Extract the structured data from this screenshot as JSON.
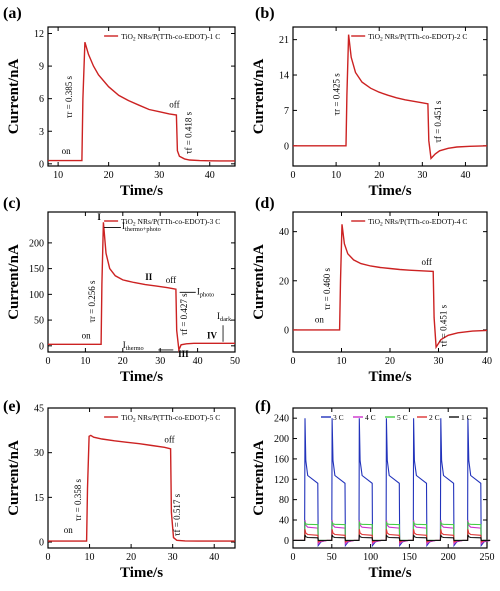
{
  "chart_data": [
    {
      "panel": "(a)",
      "type": "line",
      "legend": "TiO₂ NRs/P(TTh-co-EDOT)-1 C",
      "xlabel": "Time/s",
      "ylabel": "Current/nA",
      "xlim": [
        8,
        45
      ],
      "ylim": [
        -0.2,
        12.6
      ],
      "xticks": [
        "10",
        "20",
        "30",
        "40"
      ],
      "yticks": [
        "0",
        "3",
        "6",
        "9",
        "12"
      ],
      "color": "#cc2222",
      "x": [
        8,
        14.7,
        14.9,
        15.3,
        16,
        17,
        18,
        20,
        22,
        24,
        26,
        28,
        30,
        32,
        33.4,
        33.6,
        34,
        35,
        36,
        38,
        40,
        42,
        45
      ],
      "y": [
        0.3,
        0.3,
        6.0,
        11.2,
        10.1,
        9.0,
        8.2,
        7.1,
        6.3,
        5.8,
        5.4,
        5.0,
        4.8,
        4.6,
        4.5,
        1.2,
        0.7,
        0.45,
        0.35,
        0.3,
        0.28,
        0.27,
        0.27
      ],
      "annotations": {
        "on": "on",
        "off": "off",
        "t_rise": "τr = 0.385 s",
        "t_fall": "τf = 0.418 s"
      }
    },
    {
      "panel": "(b)",
      "type": "line",
      "legend": "TiO₂ NRs/P(TTh-co-EDOT)-2 C",
      "xlabel": "Time/s",
      "ylabel": "Current/nA",
      "xlim": [
        0,
        45
      ],
      "ylim": [
        -4,
        23.5
      ],
      "xticks": [
        "0",
        "10",
        "20",
        "30",
        "40"
      ],
      "yticks": [
        "0",
        "7",
        "14",
        "21"
      ],
      "color": "#cc2222",
      "x": [
        0,
        12.3,
        12.5,
        12.9,
        13.5,
        14.5,
        16,
        18,
        20,
        22,
        24,
        26,
        28,
        30,
        31.3,
        31.5,
        32,
        33,
        34,
        36,
        38,
        41,
        45
      ],
      "y": [
        0,
        0,
        10,
        22,
        17.5,
        14.5,
        12.6,
        11.4,
        10.6,
        10.0,
        9.5,
        9.1,
        8.8,
        8.5,
        8.3,
        1.0,
        -2.5,
        -1.6,
        -1.0,
        -0.5,
        -0.25,
        -0.1,
        0
      ],
      "annotations": {
        "t_rise": "τr = 0.425 s",
        "t_fall": "τf = 0.451 s"
      }
    },
    {
      "panel": "(c)",
      "type": "line",
      "legend": "TiO₂ NRs/P(TTh-co-EDOT)-3 C",
      "xlabel": "Time/s",
      "ylabel": "Current/nA",
      "xlim": [
        0,
        50
      ],
      "ylim": [
        -12,
        260
      ],
      "xticks": [
        "0",
        "10",
        "20",
        "30",
        "40",
        "50"
      ],
      "yticks": [
        "0",
        "50",
        "100",
        "150",
        "200"
      ],
      "color": "#cc2222",
      "x": [
        0,
        14.2,
        14.4,
        14.8,
        15.5,
        16.5,
        18,
        20,
        23,
        26,
        29,
        32,
        34.2,
        34.4,
        35,
        35.6,
        37,
        39,
        42,
        46,
        50
      ],
      "y": [
        3,
        3,
        120,
        240,
        180,
        150,
        136,
        128,
        123,
        119,
        116,
        113,
        110,
        30,
        -8,
        2,
        4,
        5,
        5,
        5,
        5
      ],
      "annotations": {
        "on": "on",
        "off": "off",
        "t_rise": "τr = 0.256 s",
        "t_fall": "τf = 0.427 s",
        "I": "I",
        "II": "II",
        "III": "III",
        "IV": "IV",
        "I_thermo_photo": "Ithermo+photo",
        "I_photo": "Iphoto",
        "I_thermo": "Ithermo",
        "I_dark": "Idark"
      }
    },
    {
      "panel": "(d)",
      "type": "line",
      "legend": "TiO₂ NRs/P(TTh-co-EDOT)-4 C",
      "xlabel": "Time/s",
      "ylabel": "Current/nA",
      "xlim": [
        0,
        40
      ],
      "ylim": [
        -9,
        48
      ],
      "xticks": [
        "0",
        "10",
        "20",
        "30",
        "40"
      ],
      "yticks": [
        "0",
        "20",
        "40"
      ],
      "color": "#cc2222",
      "x": [
        0,
        9.6,
        9.8,
        10.1,
        10.6,
        11.3,
        12.5,
        14,
        16,
        18,
        20,
        22,
        24,
        26,
        28,
        28.9,
        29.1,
        29.5,
        30.5,
        32,
        34,
        37,
        40
      ],
      "y": [
        0,
        0,
        20,
        43,
        35,
        31,
        28.5,
        27,
        26,
        25.4,
        25,
        24.6,
        24.3,
        24.1,
        23.9,
        23.8,
        5,
        -7,
        -4,
        -2.2,
        -1.2,
        -0.5,
        -0.2
      ],
      "annotations": {
        "on": "on",
        "off": "off",
        "t_rise": "τr = 0.460 s",
        "t_fall": "τf = 0.451 s"
      }
    },
    {
      "panel": "(e)",
      "type": "line",
      "legend": "TiO₂ NRs/P(TTh-co-EDOT)-5 C",
      "xlabel": "Time/s",
      "ylabel": "Current/nA",
      "xlim": [
        0,
        45
      ],
      "ylim": [
        -2,
        45
      ],
      "xticks": [
        "0",
        "10",
        "20",
        "30",
        "40"
      ],
      "yticks": [
        "0",
        "15",
        "30",
        "45"
      ],
      "color": "#cc2222",
      "x": [
        0,
        9.3,
        9.5,
        9.9,
        10.3,
        11,
        13,
        16,
        19,
        22,
        25,
        28,
        29.5,
        29.7,
        30.2,
        31,
        33,
        36,
        40,
        45
      ],
      "y": [
        0.3,
        0.3,
        18,
        35.5,
        35.8,
        35.2,
        34.6,
        34,
        33.5,
        33,
        32.4,
        31.8,
        31.3,
        10,
        1.5,
        0.6,
        0.4,
        0.3,
        0.3,
        0.3
      ],
      "annotations": {
        "on": "on",
        "off": "off",
        "t_rise": "τr = 0.358 s",
        "t_fall": "τf = 0.517 s"
      }
    },
    {
      "panel": "(f)",
      "type": "line",
      "xlabel": "Time/s",
      "ylabel": "Current/nA",
      "xlim": [
        0,
        250
      ],
      "ylim": [
        -15,
        260
      ],
      "xticks": [
        "0",
        "50",
        "100",
        "150",
        "200",
        "250"
      ],
      "yticks": [
        "0",
        "40",
        "80",
        "120",
        "160",
        "200",
        "240"
      ],
      "cycle_starts": [
        15,
        50,
        85,
        120,
        155,
        190,
        225
      ],
      "series": [
        {
          "name": "3 C",
          "color": "#2233bb",
          "peak": 240,
          "plateau": 112,
          "undershoot": -10
        },
        {
          "name": "4 C",
          "color": "#cc33cc",
          "peak": 40,
          "plateau": 24,
          "undershoot": -7
        },
        {
          "name": "5 C",
          "color": "#44cc44",
          "peak": 35,
          "plateau": 31,
          "undershoot": 0
        },
        {
          "name": "2 C",
          "color": "#dd3333",
          "peak": 22,
          "plateau": 10,
          "undershoot": -3
        },
        {
          "name": "1 C",
          "color": "#111111",
          "peak": 11,
          "plateau": 5,
          "undershoot": 0
        }
      ]
    }
  ]
}
